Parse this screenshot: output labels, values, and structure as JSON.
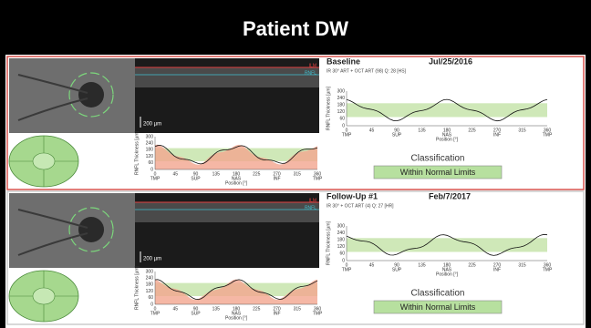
{
  "title": "Patient DW",
  "axes": {
    "y_label": "RNFL Thickness [µm]",
    "x_label": "Position [°]",
    "yticks": [
      "300",
      "240",
      "180",
      "120",
      "60",
      "0"
    ],
    "xticks": [
      "0",
      "45",
      "90",
      "135",
      "180",
      "225",
      "270",
      "315",
      "360"
    ],
    "regions": [
      "TMP",
      "SUP",
      "NAS",
      "INF",
      "TMP"
    ]
  },
  "panels": [
    {
      "label": "Baseline",
      "date": "Jul/25/2016",
      "scan": "IR 30° ART + OCT ART (98) Q: 28 [HS]",
      "classification_heading": "Classification",
      "classification": "Within Normal Limits",
      "scale_bar": "200 µm",
      "layer_labels": [
        "ILM",
        "RNFL"
      ],
      "border_color": "#d9534f"
    },
    {
      "label": "Follow-Up #1",
      "date": "Feb/7/2017",
      "scan": "IR 30° + OCT ART (4) Q: 27 [HR]",
      "classification_heading": "Classification",
      "classification": "Within Normal Limits",
      "scale_bar": "200 µm",
      "layer_labels": [
        "ILM",
        "RNFL"
      ],
      "border_color": "#cccccc"
    }
  ]
}
